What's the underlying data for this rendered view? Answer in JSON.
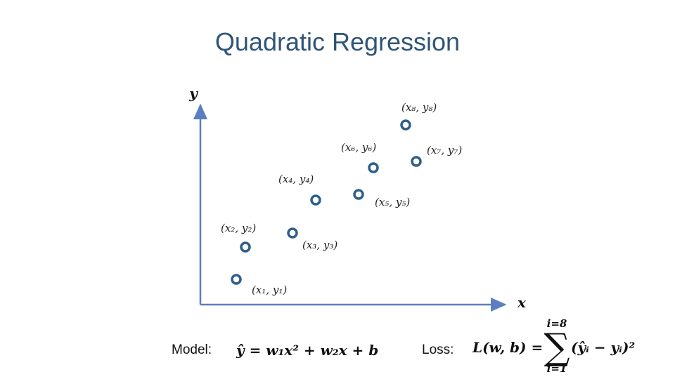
{
  "title": "Quadratic Regression",
  "axes": {
    "y_label": "y",
    "x_label": "x"
  },
  "points": [
    {
      "label": "(x₁, y₁)"
    },
    {
      "label": "(x₂, y₂)"
    },
    {
      "label": "(x₃, y₃)"
    },
    {
      "label": "(x₄, y₄)"
    },
    {
      "label": "(x₅, y₅)"
    },
    {
      "label": "(x₆, y₆)"
    },
    {
      "label": "(x₇, y₇)"
    },
    {
      "label": "(x₈, y₈)"
    }
  ],
  "model": {
    "label": "Model:",
    "formula": "ŷ = w₁x² + w₂x + b"
  },
  "loss": {
    "label": "Loss:",
    "lhs": "L(w, b) =",
    "sigma": "∑",
    "upper": "i=8",
    "lower": "i=1",
    "summand": "(ŷᵢ − yᵢ)²"
  }
}
